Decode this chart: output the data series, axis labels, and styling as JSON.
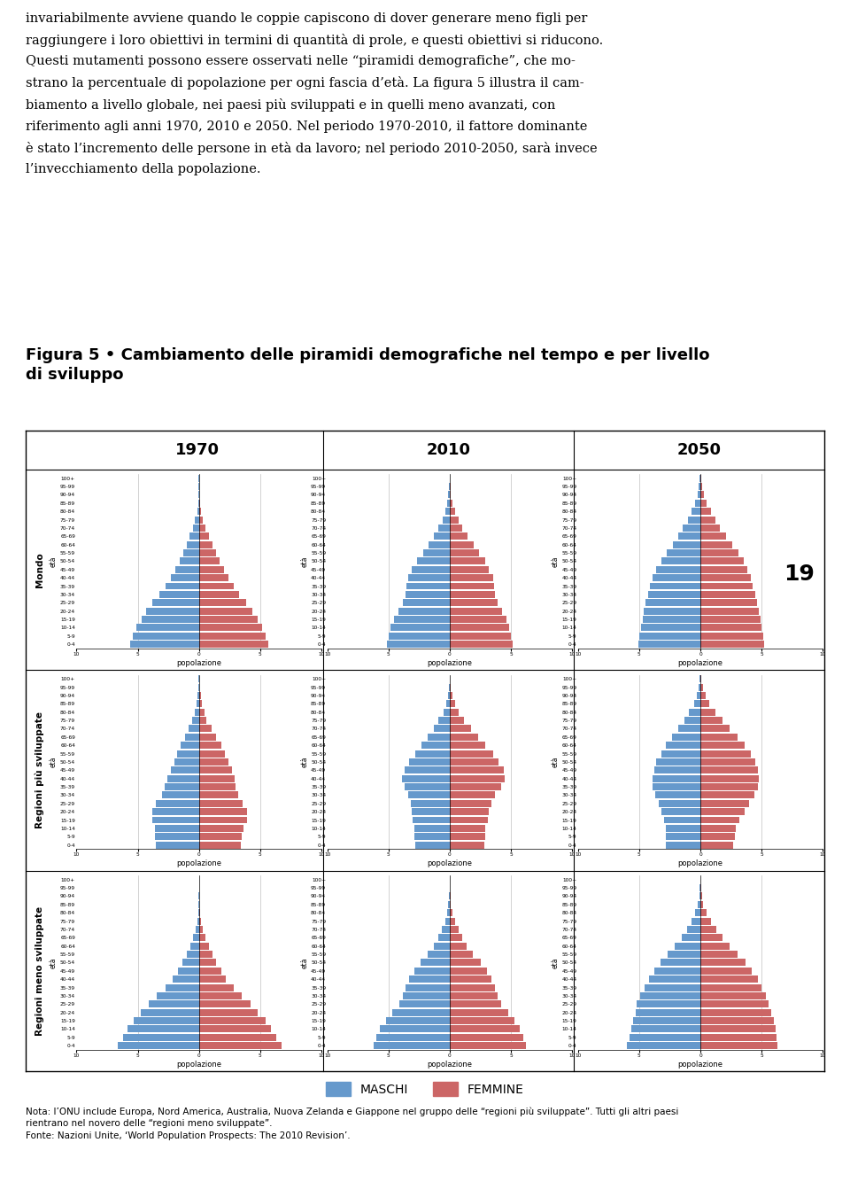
{
  "title_line1": "Figura 5 • Cambiamento delle piramidi demografiche nel tempo e per livello",
  "title_line2": "di sviluppo",
  "body_text": "invariabilmente avviene quando le coppie capiscono di dover generare meno figli per\nraggiungere i loro obiettivi in termini di quantità di prole, e questi obiettivi si riducono.\nQuesti mutamenti possono essere osservati nelle “piramidi demografiche”, che mo-\nstrano la percentuale di popolazione per ogni fascia d’età. La figura 5 illustra il cam-\nbiamento a livello globale, nei paesi più sviluppati e in quelli meno avanzati, con\nriferimento agli anni 1970, 2010 e 2050. Nel periodo 1970-2010, il fattore dominante\nè stato l’incremento delle persone in età da lavoro; nel periodo 2010-2050, sarà invece\nl’invecchiamento della popolazione.",
  "years": [
    "1970",
    "2010",
    "2050"
  ],
  "row_labels": [
    "Mondo",
    "Regioni più sviluppate",
    "Regioni meno sviluppate"
  ],
  "age_groups": [
    "100+",
    "95-99",
    "90-94",
    "85-89",
    "80-84",
    "75-79",
    "70-74",
    "65-69",
    "60-64",
    "55-59",
    "50-54",
    "45-49",
    "40-44",
    "35-39",
    "30-34",
    "25-29",
    "20-24",
    "15-19",
    "10-14",
    "5-9",
    "0-4"
  ],
  "male_color": "#6699cc",
  "female_color": "#cc6666",
  "xlabel": "popolazione",
  "ylabel": "età",
  "xlim": 10,
  "background_color": "#ffffff",
  "grid_color": "#c0c0c0",
  "data": {
    "Mondo": {
      "1970": {
        "males": [
          0.02,
          0.03,
          0.05,
          0.08,
          0.15,
          0.3,
          0.5,
          0.75,
          1.0,
          1.3,
          1.6,
          1.95,
          2.3,
          2.75,
          3.25,
          3.8,
          4.3,
          4.7,
          5.1,
          5.4,
          5.6
        ],
        "females": [
          0.02,
          0.03,
          0.06,
          0.09,
          0.18,
          0.33,
          0.54,
          0.8,
          1.08,
          1.38,
          1.68,
          2.02,
          2.38,
          2.82,
          3.3,
          3.85,
          4.38,
          4.78,
          5.14,
          5.45,
          5.65
        ]
      },
      "2010": {
        "males": [
          0.02,
          0.04,
          0.1,
          0.18,
          0.35,
          0.58,
          0.9,
          1.28,
          1.72,
          2.18,
          2.68,
          3.1,
          3.42,
          3.52,
          3.6,
          3.82,
          4.2,
          4.52,
          4.82,
          5.0,
          5.1
        ],
        "females": [
          0.02,
          0.05,
          0.12,
          0.22,
          0.42,
          0.7,
          1.06,
          1.46,
          1.94,
          2.42,
          2.94,
          3.22,
          3.52,
          3.62,
          3.72,
          3.92,
          4.3,
          4.62,
          4.84,
          5.02,
          5.18
        ]
      },
      "2050": {
        "males": [
          0.05,
          0.12,
          0.22,
          0.42,
          0.72,
          1.05,
          1.42,
          1.82,
          2.28,
          2.78,
          3.22,
          3.6,
          3.9,
          4.1,
          4.3,
          4.5,
          4.62,
          4.72,
          4.82,
          5.0,
          5.1
        ],
        "females": [
          0.06,
          0.14,
          0.26,
          0.5,
          0.84,
          1.22,
          1.62,
          2.08,
          2.58,
          3.1,
          3.52,
          3.82,
          4.1,
          4.3,
          4.5,
          4.62,
          4.8,
          4.92,
          5.02,
          5.12,
          5.22
        ]
      }
    },
    "Regioni più sviluppate": {
      "1970": {
        "males": [
          0.02,
          0.04,
          0.1,
          0.2,
          0.35,
          0.52,
          0.82,
          1.12,
          1.5,
          1.8,
          2.02,
          2.3,
          2.6,
          2.8,
          3.0,
          3.5,
          3.8,
          3.8,
          3.6,
          3.6,
          3.5
        ],
        "females": [
          0.02,
          0.06,
          0.14,
          0.26,
          0.44,
          0.64,
          1.02,
          1.42,
          1.82,
          2.1,
          2.38,
          2.68,
          2.9,
          3.02,
          3.22,
          3.6,
          3.9,
          3.9,
          3.62,
          3.52,
          3.4
        ]
      },
      "2010": {
        "males": [
          0.02,
          0.06,
          0.14,
          0.3,
          0.52,
          0.9,
          1.32,
          1.8,
          2.28,
          2.78,
          3.3,
          3.7,
          3.9,
          3.7,
          3.4,
          3.2,
          3.1,
          3.0,
          2.9,
          2.9,
          2.8
        ],
        "females": [
          0.04,
          0.1,
          0.22,
          0.42,
          0.72,
          1.14,
          1.72,
          2.32,
          2.92,
          3.52,
          4.02,
          4.42,
          4.5,
          4.2,
          3.72,
          3.4,
          3.2,
          3.1,
          2.9,
          2.9,
          2.8
        ]
      },
      "2050": {
        "males": [
          0.06,
          0.14,
          0.3,
          0.52,
          0.92,
          1.32,
          1.8,
          2.3,
          2.8,
          3.2,
          3.6,
          3.8,
          3.9,
          3.9,
          3.7,
          3.4,
          3.2,
          3.0,
          2.8,
          2.8,
          2.8
        ],
        "females": [
          0.1,
          0.22,
          0.42,
          0.72,
          1.2,
          1.8,
          2.42,
          3.02,
          3.6,
          4.1,
          4.5,
          4.72,
          4.8,
          4.7,
          4.4,
          4.0,
          3.6,
          3.2,
          2.9,
          2.8,
          2.7
        ]
      }
    },
    "Regioni meno sviluppate": {
      "1970": {
        "males": [
          0.01,
          0.01,
          0.02,
          0.04,
          0.07,
          0.15,
          0.28,
          0.48,
          0.72,
          1.0,
          1.32,
          1.72,
          2.12,
          2.72,
          3.42,
          4.12,
          4.72,
          5.32,
          5.82,
          6.22,
          6.62
        ],
        "females": [
          0.01,
          0.01,
          0.02,
          0.04,
          0.08,
          0.17,
          0.32,
          0.52,
          0.8,
          1.1,
          1.42,
          1.82,
          2.22,
          2.82,
          3.52,
          4.22,
          4.82,
          5.42,
          5.92,
          6.32,
          6.72
        ]
      },
      "2010": {
        "males": [
          0.01,
          0.02,
          0.05,
          0.1,
          0.2,
          0.38,
          0.62,
          0.92,
          1.3,
          1.78,
          2.38,
          2.9,
          3.32,
          3.58,
          3.82,
          4.12,
          4.7,
          5.22,
          5.72,
          6.02,
          6.22
        ],
        "females": [
          0.01,
          0.02,
          0.05,
          0.1,
          0.22,
          0.42,
          0.7,
          1.02,
          1.42,
          1.92,
          2.52,
          3.02,
          3.42,
          3.68,
          3.92,
          4.22,
          4.82,
          5.32,
          5.72,
          6.02,
          6.22
        ]
      },
      "2050": {
        "males": [
          0.02,
          0.04,
          0.1,
          0.22,
          0.42,
          0.72,
          1.1,
          1.52,
          2.08,
          2.68,
          3.28,
          3.78,
          4.2,
          4.58,
          4.9,
          5.18,
          5.3,
          5.5,
          5.62,
          5.8,
          6.0
        ],
        "females": [
          0.02,
          0.04,
          0.12,
          0.25,
          0.5,
          0.84,
          1.28,
          1.8,
          2.42,
          3.02,
          3.7,
          4.22,
          4.7,
          5.02,
          5.38,
          5.6,
          5.8,
          6.0,
          6.12,
          6.22,
          6.3
        ]
      }
    }
  },
  "footnote1": "Nota: l’ONU include Europa, Nord America, Australia, Nuova Zelanda e Giappone nel gruppo delle “regioni più sviluppate”. Tutti gli altri paesi",
  "footnote2": "rientrano nel novero delle “regioni meno sviluppate”.",
  "footnote3": "Fonte: Nazioni Unite, ‘World Population Prospects: The 2010 Revision’.",
  "page_number": "19"
}
